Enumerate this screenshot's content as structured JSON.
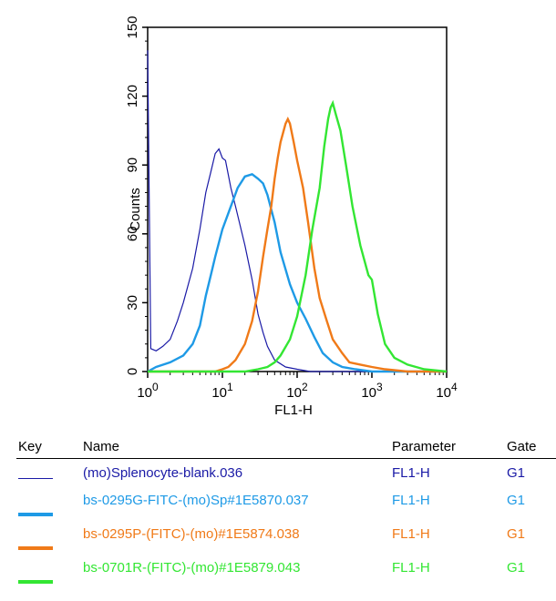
{
  "chart_data": {
    "type": "line",
    "xlabel": "FL1-H",
    "ylabel": "Counts",
    "x_scale": "log",
    "xlim": [
      1,
      10000
    ],
    "ylim": [
      0,
      150
    ],
    "x_ticks": [
      {
        "value": 1,
        "base": "10",
        "exp": "0"
      },
      {
        "value": 10,
        "base": "10",
        "exp": "1"
      },
      {
        "value": 100,
        "base": "10",
        "exp": "2"
      },
      {
        "value": 1000,
        "base": "10",
        "exp": "3"
      },
      {
        "value": 10000,
        "base": "10",
        "exp": "4"
      }
    ],
    "y_ticks": [
      "0",
      "30",
      "60",
      "90",
      "120",
      "150"
    ],
    "series": [
      {
        "name": "(mo)Splenocyte-blank.036",
        "color": "#1a1aa6",
        "line_width": 1.2,
        "points": [
          [
            1,
            140
          ],
          [
            1.1,
            10
          ],
          [
            1.3,
            9
          ],
          [
            1.6,
            11
          ],
          [
            2,
            14
          ],
          [
            2.5,
            22
          ],
          [
            3,
            30
          ],
          [
            4,
            45
          ],
          [
            5,
            62
          ],
          [
            6,
            78
          ],
          [
            7,
            87
          ],
          [
            8,
            95
          ],
          [
            9,
            97
          ],
          [
            10,
            93
          ],
          [
            11,
            92
          ],
          [
            13,
            80
          ],
          [
            15,
            72
          ],
          [
            20,
            55
          ],
          [
            25,
            40
          ],
          [
            30,
            25
          ],
          [
            35,
            17
          ],
          [
            40,
            11
          ],
          [
            50,
            5
          ],
          [
            70,
            2
          ],
          [
            100,
            1
          ],
          [
            150,
            0
          ],
          [
            1000,
            0
          ],
          [
            10000,
            0
          ]
        ]
      },
      {
        "name": "bs-0295G-FITC-(mo)Sp#1E5870.037",
        "color": "#1e9ae6",
        "line_width": 2.4,
        "points": [
          [
            1,
            0
          ],
          [
            1.3,
            2
          ],
          [
            2,
            4
          ],
          [
            3,
            7
          ],
          [
            4,
            12
          ],
          [
            5,
            20
          ],
          [
            6,
            33
          ],
          [
            7,
            42
          ],
          [
            8,
            50
          ],
          [
            10,
            62
          ],
          [
            13,
            72
          ],
          [
            16,
            80
          ],
          [
            20,
            85
          ],
          [
            25,
            86
          ],
          [
            30,
            84
          ],
          [
            35,
            82
          ],
          [
            40,
            77
          ],
          [
            50,
            65
          ],
          [
            60,
            52
          ],
          [
            80,
            38
          ],
          [
            100,
            30
          ],
          [
            130,
            23
          ],
          [
            170,
            15
          ],
          [
            220,
            8
          ],
          [
            300,
            4
          ],
          [
            400,
            2
          ],
          [
            600,
            1
          ],
          [
            1000,
            0
          ],
          [
            10000,
            0
          ]
        ]
      },
      {
        "name": "bs-0295P-(FITC)-(mo)#1E5874.038",
        "color": "#f07a18",
        "line_width": 2.4,
        "points": [
          [
            1,
            0
          ],
          [
            5,
            0
          ],
          [
            8,
            0
          ],
          [
            10,
            1
          ],
          [
            12,
            2
          ],
          [
            15,
            5
          ],
          [
            20,
            12
          ],
          [
            25,
            22
          ],
          [
            30,
            35
          ],
          [
            35,
            50
          ],
          [
            40,
            62
          ],
          [
            45,
            72
          ],
          [
            50,
            84
          ],
          [
            55,
            93
          ],
          [
            60,
            100
          ],
          [
            70,
            108
          ],
          [
            75,
            110
          ],
          [
            80,
            108
          ],
          [
            90,
            100
          ],
          [
            100,
            92
          ],
          [
            120,
            80
          ],
          [
            140,
            65
          ],
          [
            170,
            45
          ],
          [
            200,
            32
          ],
          [
            250,
            22
          ],
          [
            300,
            14
          ],
          [
            400,
            8
          ],
          [
            500,
            4
          ],
          [
            700,
            3
          ],
          [
            1000,
            2
          ],
          [
            1500,
            1
          ],
          [
            3000,
            0
          ],
          [
            10000,
            0
          ]
        ]
      },
      {
        "name": "bs-0701R-(FITC)-(mo)#1E5879.043",
        "color": "#33e633",
        "line_width": 2.4,
        "points": [
          [
            1,
            0
          ],
          [
            20,
            0
          ],
          [
            30,
            1
          ],
          [
            40,
            2
          ],
          [
            50,
            4
          ],
          [
            60,
            7
          ],
          [
            80,
            14
          ],
          [
            100,
            24
          ],
          [
            130,
            42
          ],
          [
            160,
            62
          ],
          [
            200,
            80
          ],
          [
            230,
            98
          ],
          [
            260,
            110
          ],
          [
            280,
            115
          ],
          [
            300,
            117
          ],
          [
            330,
            112
          ],
          [
            380,
            105
          ],
          [
            450,
            90
          ],
          [
            550,
            72
          ],
          [
            700,
            55
          ],
          [
            900,
            42
          ],
          [
            1000,
            40
          ],
          [
            1200,
            25
          ],
          [
            1500,
            12
          ],
          [
            2000,
            6
          ],
          [
            3000,
            3
          ],
          [
            5000,
            1
          ],
          [
            10000,
            0
          ]
        ]
      }
    ]
  },
  "legend": {
    "headers": {
      "key": "Key",
      "name": "Name",
      "parameter": "Parameter",
      "gate": "Gate"
    },
    "rows": [
      {
        "name": "(mo)Splenocyte-blank.036",
        "parameter": "FL1-H",
        "gate": "G1",
        "color": "#1a1aa6"
      },
      {
        "name": "bs-0295G-FITC-(mo)Sp#1E5870.037",
        "parameter": "FL1-H",
        "gate": "G1",
        "color": "#1e9ae6"
      },
      {
        "name": "bs-0295P-(FITC)-(mo)#1E5874.038",
        "parameter": "FL1-H",
        "gate": "G1",
        "color": "#f07a18"
      },
      {
        "name": "bs-0701R-(FITC)-(mo)#1E5879.043",
        "parameter": "FL1-H",
        "gate": "G1",
        "color": "#33e633"
      }
    ]
  }
}
